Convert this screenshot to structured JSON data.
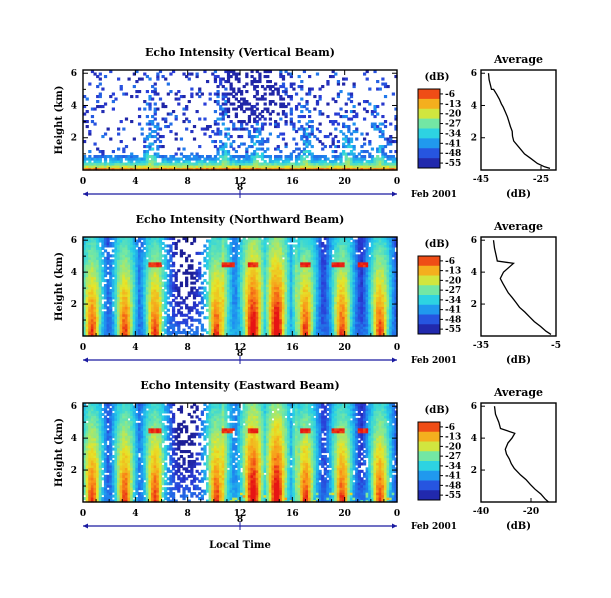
{
  "chart_data": [
    {
      "type": "heatmap",
      "title": "Echo Intensity (Vertical Beam)",
      "ylabel": "Height (km)",
      "xlabel": "",
      "x_ticks": [
        "0",
        "4",
        "8",
        "12",
        "16",
        "20",
        "0"
      ],
      "y_ticks": [
        "2",
        "4",
        "6"
      ],
      "xlim": [
        0,
        24
      ],
      "ylim": [
        0,
        6.2
      ],
      "date_marker": "8",
      "date_label": "Feb 2001",
      "colorbar": {
        "unit": "(dB)",
        "ticks": [
          "-6",
          "-13",
          "-20",
          "-27",
          "-34",
          "-41",
          "-48",
          "-55"
        ]
      }
    },
    {
      "type": "heatmap",
      "title": "Echo Intensity (Northward Beam)",
      "ylabel": "Height (km)",
      "xlabel": "",
      "x_ticks": [
        "0",
        "4",
        "8",
        "12",
        "16",
        "20",
        "0"
      ],
      "y_ticks": [
        "2",
        "4",
        "6"
      ],
      "xlim": [
        0,
        24
      ],
      "ylim": [
        0,
        6.2
      ],
      "date_marker": "8",
      "date_label": "Feb 2001",
      "colorbar": {
        "unit": "(dB)",
        "ticks": [
          "-6",
          "-13",
          "-20",
          "-27",
          "-34",
          "-41",
          "-48",
          "-55"
        ]
      }
    },
    {
      "type": "heatmap",
      "title": "Echo Intensity (Eastward Beam)",
      "ylabel": "Height (km)",
      "xlabel": "Local Time",
      "x_ticks": [
        "0",
        "4",
        "8",
        "12",
        "16",
        "20",
        "0"
      ],
      "y_ticks": [
        "2",
        "4",
        "6"
      ],
      "xlim": [
        0,
        24
      ],
      "ylim": [
        0,
        6.2
      ],
      "date_marker": "8",
      "date_label": "Feb 2001",
      "colorbar": {
        "unit": "(dB)",
        "ticks": [
          "-6",
          "-13",
          "-20",
          "-27",
          "-34",
          "-41",
          "-48",
          "-55"
        ]
      }
    },
    {
      "type": "line",
      "title": "Average",
      "xlabel": "(dB)",
      "x_ticks": [
        "-45",
        "-25"
      ],
      "y_ticks": [
        "2",
        "4",
        "6"
      ],
      "xlim": [
        -45,
        -20
      ],
      "ylim": [
        0,
        6.2
      ],
      "x": [
        -42.5,
        -42.3,
        -41.5,
        -40.8,
        -39.8,
        -38.9,
        -38.2,
        -37.6,
        -36.9,
        -36.2,
        -35.7,
        -35.2,
        -34.6,
        -34.5,
        -34.1,
        -32.3,
        -30.5,
        -28.3,
        -26.2,
        -23.8,
        -22.0
      ],
      "y": [
        6.0,
        5.6,
        5.0,
        5.0,
        4.7,
        4.4,
        4.1,
        3.9,
        3.6,
        3.3,
        3.0,
        2.7,
        2.4,
        2.1,
        1.8,
        1.4,
        1.0,
        0.7,
        0.4,
        0.2,
        0.1
      ]
    },
    {
      "type": "line",
      "title": "Average",
      "xlabel": "(dB)",
      "x_ticks": [
        "-35",
        "-5"
      ],
      "y_ticks": [
        "2",
        "4",
        "6"
      ],
      "xlim": [
        -35,
        -5
      ],
      "ylim": [
        0,
        6.2
      ],
      "x": [
        -30.0,
        -29.6,
        -28.9,
        -28.5,
        -22.0,
        -23.8,
        -26.0,
        -27.3,
        -26.3,
        -25.2,
        -24.1,
        -22.5,
        -21.0,
        -19.6,
        -17.5,
        -15.6,
        -13.7,
        -11.2,
        -9.0,
        -7.0
      ],
      "y": [
        6.0,
        5.5,
        5.0,
        4.7,
        4.55,
        4.3,
        4.0,
        3.6,
        3.3,
        3.0,
        2.7,
        2.4,
        2.1,
        1.8,
        1.5,
        1.2,
        0.9,
        0.6,
        0.3,
        0.1
      ]
    },
    {
      "type": "line",
      "title": "Average",
      "xlabel": "(dB)",
      "x_ticks": [
        "-40",
        "-20"
      ],
      "y_ticks": [
        "2",
        "4",
        "6"
      ],
      "xlim": [
        -40,
        -10
      ],
      "ylim": [
        0,
        6.2
      ],
      "x": [
        -34.6,
        -34.2,
        -32.9,
        -32.2,
        -26.5,
        -27.6,
        -29.2,
        -30.3,
        -29.8,
        -28.7,
        -27.9,
        -26.7,
        -24.2,
        -22.0,
        -20.3,
        -18.4,
        -16.1,
        -14.4,
        -13.0
      ],
      "y": [
        6.0,
        5.5,
        5.0,
        4.6,
        4.3,
        4.0,
        3.7,
        3.3,
        3.0,
        2.7,
        2.4,
        2.1,
        1.7,
        1.4,
        1.1,
        0.8,
        0.5,
        0.2,
        0.0
      ]
    }
  ]
}
